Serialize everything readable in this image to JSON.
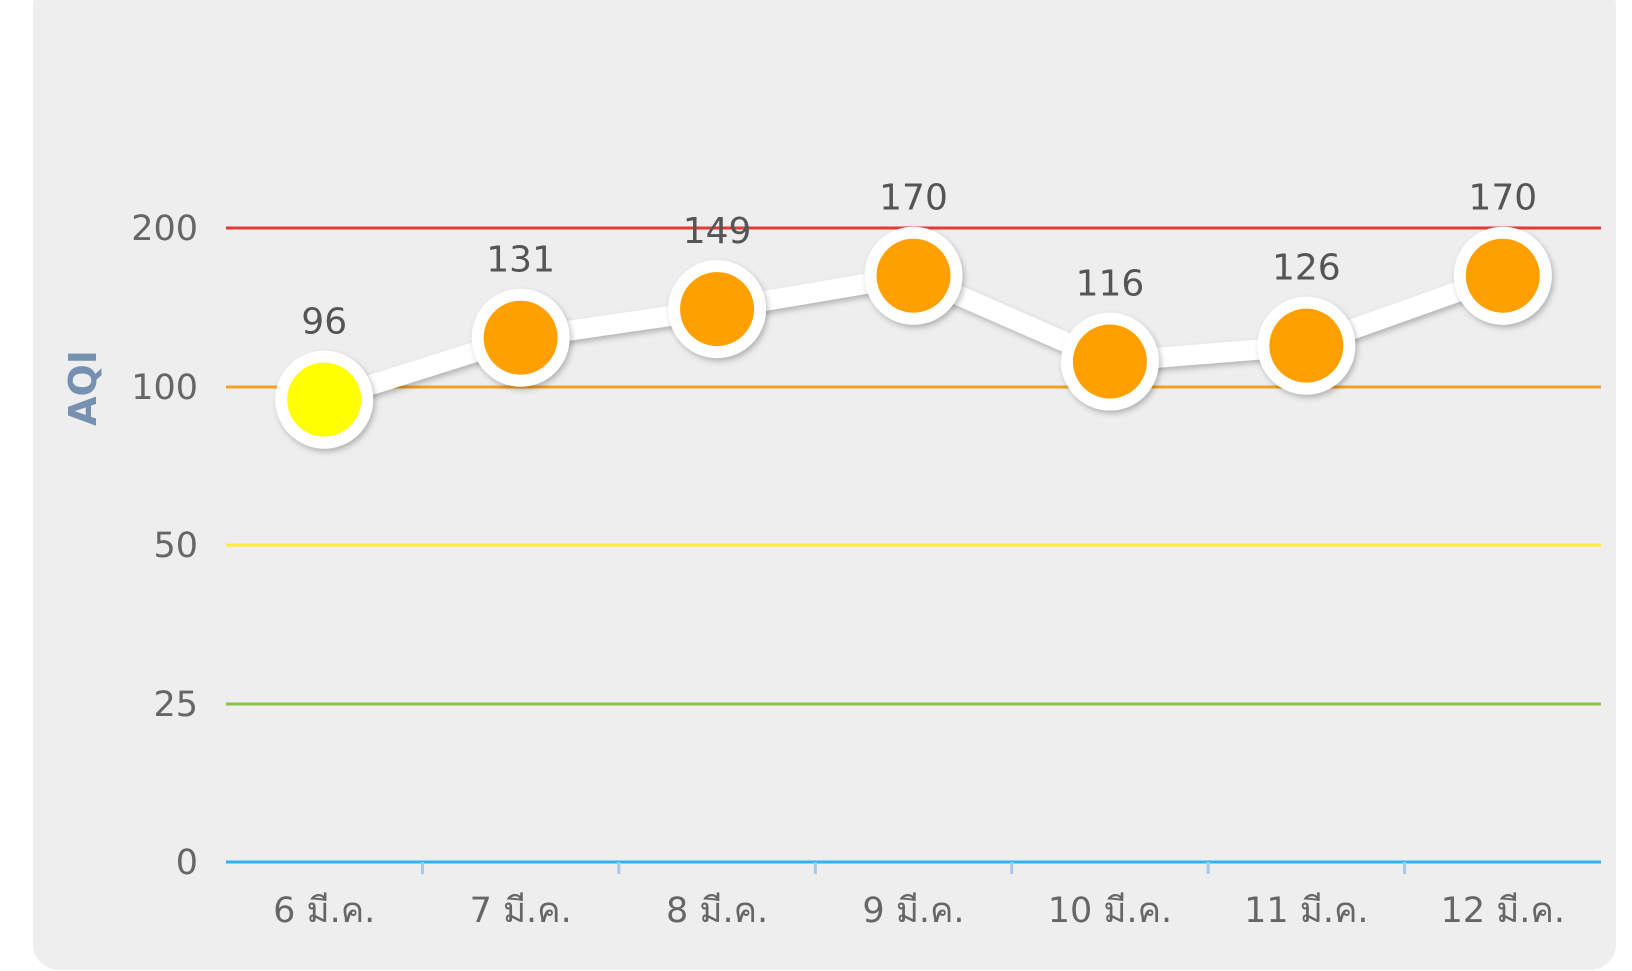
{
  "chart_data": {
    "type": "line",
    "ylabel": "AQI",
    "categories": [
      "6 มี.ค.",
      "7 มี.ค.",
      "8 มี.ค.",
      "9 มี.ค.",
      "10 มี.ค.",
      "11 มี.ค.",
      "12 มี.ค."
    ],
    "series": [
      {
        "values": [
          96,
          131,
          149,
          170,
          116,
          126,
          170
        ]
      }
    ],
    "point_colors": [
      "#ffff00",
      "#ffa000",
      "#ffa000",
      "#ffa000",
      "#ffa000",
      "#ffa000",
      "#ffa000"
    ],
    "y_ticks": [
      "0",
      "25",
      "50",
      "100",
      "200"
    ],
    "threshold_lines": [
      {
        "value": 0,
        "color": "#29b6f6"
      },
      {
        "value": 25,
        "color": "#8bc34a"
      },
      {
        "value": 50,
        "color": "#ffee30"
      },
      {
        "value": 100,
        "color": "#f5a020"
      },
      {
        "value": 200,
        "color": "#e53935"
      }
    ],
    "ylim": [
      0,
      200
    ],
    "y_scale": "piecewise: 0-25-50-100-200 equally spaced",
    "grid": false,
    "legend": "none"
  }
}
